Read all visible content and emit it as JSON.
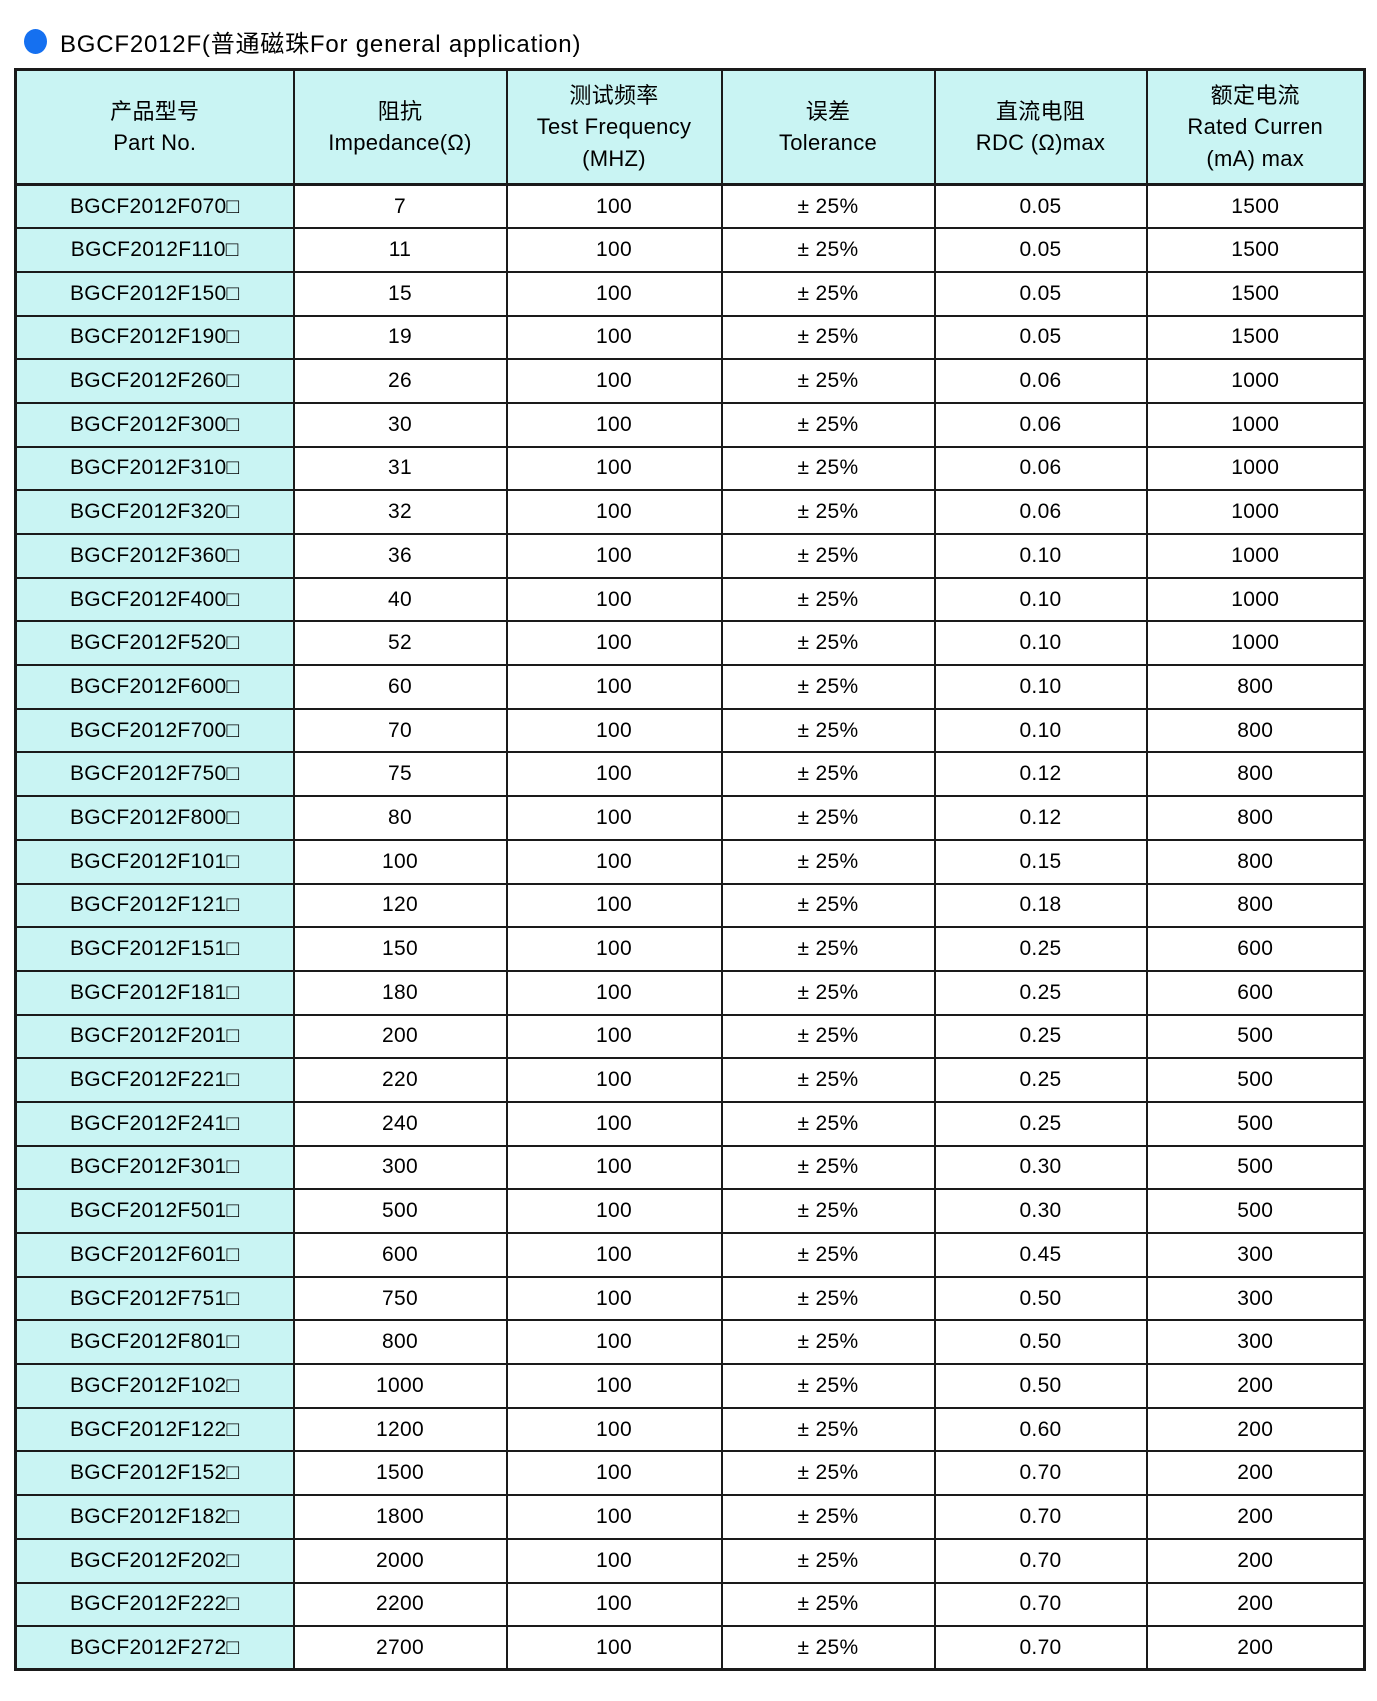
{
  "colors": {
    "accent_blue": "#1570f0",
    "header_bg": "#c9f4f3",
    "border": "#1a1a1a"
  },
  "title": {
    "text": "BGCF2012F(普通磁珠For general application)"
  },
  "table": {
    "headers": [
      {
        "lines": [
          "产品型号",
          "Part No."
        ]
      },
      {
        "lines": [
          "阻抗",
          "Impedance(Ω)"
        ]
      },
      {
        "lines": [
          "测试频率",
          "Test Frequency",
          "(MHZ)"
        ]
      },
      {
        "lines": [
          "误差",
          "Tolerance"
        ]
      },
      {
        "lines": [
          "直流电阻",
          "RDC (Ω)max"
        ]
      },
      {
        "lines": [
          "额定电流",
          "Rated Curren",
          "(mA) max"
        ]
      }
    ],
    "rows": [
      [
        "BGCF2012F070□",
        "7",
        "100",
        "± 25%",
        "0.05",
        "1500"
      ],
      [
        "BGCF2012F110□",
        "11",
        "100",
        "± 25%",
        "0.05",
        "1500"
      ],
      [
        "BGCF2012F150□",
        "15",
        "100",
        "± 25%",
        "0.05",
        "1500"
      ],
      [
        "BGCF2012F190□",
        "19",
        "100",
        "± 25%",
        "0.05",
        "1500"
      ],
      [
        "BGCF2012F260□",
        "26",
        "100",
        "± 25%",
        "0.06",
        "1000"
      ],
      [
        "BGCF2012F300□",
        "30",
        "100",
        "± 25%",
        "0.06",
        "1000"
      ],
      [
        "BGCF2012F310□",
        "31",
        "100",
        "± 25%",
        "0.06",
        "1000"
      ],
      [
        "BGCF2012F320□",
        "32",
        "100",
        "± 25%",
        "0.06",
        "1000"
      ],
      [
        "BGCF2012F360□",
        "36",
        "100",
        "± 25%",
        "0.10",
        "1000"
      ],
      [
        "BGCF2012F400□",
        "40",
        "100",
        "± 25%",
        "0.10",
        "1000"
      ],
      [
        "BGCF2012F520□",
        "52",
        "100",
        "± 25%",
        "0.10",
        "1000"
      ],
      [
        "BGCF2012F600□",
        "60",
        "100",
        "± 25%",
        "0.10",
        "800"
      ],
      [
        "BGCF2012F700□",
        "70",
        "100",
        "± 25%",
        "0.10",
        "800"
      ],
      [
        "BGCF2012F750□",
        "75",
        "100",
        "± 25%",
        "0.12",
        "800"
      ],
      [
        "BGCF2012F800□",
        "80",
        "100",
        "± 25%",
        "0.12",
        "800"
      ],
      [
        "BGCF2012F101□",
        "100",
        "100",
        "± 25%",
        "0.15",
        "800"
      ],
      [
        "BGCF2012F121□",
        "120",
        "100",
        "± 25%",
        "0.18",
        "800"
      ],
      [
        "BGCF2012F151□",
        "150",
        "100",
        "± 25%",
        "0.25",
        "600"
      ],
      [
        "BGCF2012F181□",
        "180",
        "100",
        "± 25%",
        "0.25",
        "600"
      ],
      [
        "BGCF2012F201□",
        "200",
        "100",
        "± 25%",
        "0.25",
        "500"
      ],
      [
        "BGCF2012F221□",
        "220",
        "100",
        "± 25%",
        "0.25",
        "500"
      ],
      [
        "BGCF2012F241□",
        "240",
        "100",
        "± 25%",
        "0.25",
        "500"
      ],
      [
        "BGCF2012F301□",
        "300",
        "100",
        "± 25%",
        "0.30",
        "500"
      ],
      [
        "BGCF2012F501□",
        "500",
        "100",
        "± 25%",
        "0.30",
        "500"
      ],
      [
        "BGCF2012F601□",
        "600",
        "100",
        "± 25%",
        "0.45",
        "300"
      ],
      [
        "BGCF2012F751□",
        "750",
        "100",
        "± 25%",
        "0.50",
        "300"
      ],
      [
        "BGCF2012F801□",
        "800",
        "100",
        "± 25%",
        "0.50",
        "300"
      ],
      [
        "BGCF2012F102□",
        "1000",
        "100",
        "± 25%",
        "0.50",
        "200"
      ],
      [
        "BGCF2012F122□",
        "1200",
        "100",
        "± 25%",
        "0.60",
        "200"
      ],
      [
        "BGCF2012F152□",
        "1500",
        "100",
        "± 25%",
        "0.70",
        "200"
      ],
      [
        "BGCF2012F182□",
        "1800",
        "100",
        "± 25%",
        "0.70",
        "200"
      ],
      [
        "BGCF2012F202□",
        "2000",
        "100",
        "± 25%",
        "0.70",
        "200"
      ],
      [
        "BGCF2012F222□",
        "2200",
        "100",
        "± 25%",
        "0.70",
        "200"
      ],
      [
        "BGCF2012F272□",
        "2700",
        "100",
        "± 25%",
        "0.70",
        "200"
      ]
    ]
  }
}
